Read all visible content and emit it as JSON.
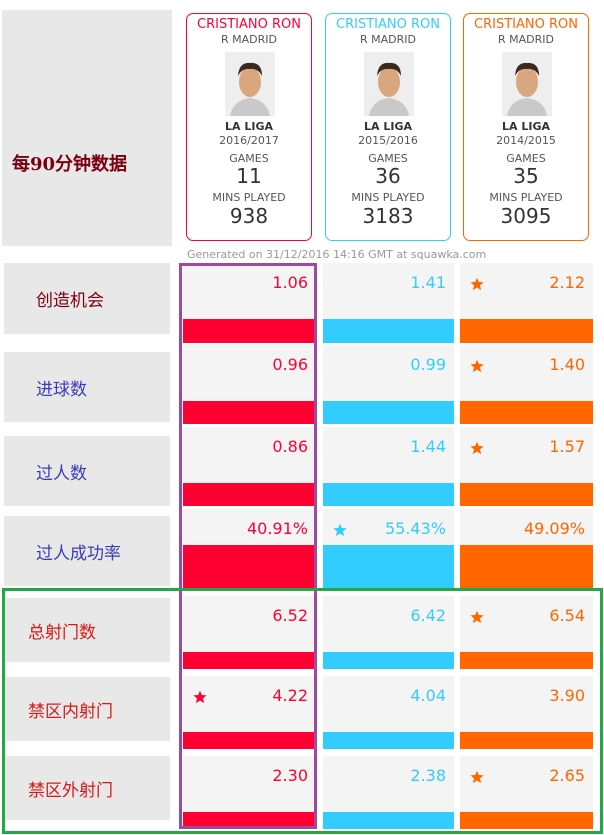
{
  "header": {
    "label": "每90分钟数据",
    "generated": "Generated on 31/12/2016 14:16 GMT at squawka.com"
  },
  "players": [
    {
      "name": "CRISTIANO RON",
      "team": "R MADRID",
      "league": "LA LIGA",
      "season": "2016/2017",
      "games_label": "GAMES",
      "games": "11",
      "mins_label": "MINS PLAYED",
      "mins": "938",
      "color": "#ff0033"
    },
    {
      "name": "CRISTIANO RON",
      "team": "R MADRID",
      "league": "LA LIGA",
      "season": "2015/2016",
      "games_label": "GAMES",
      "games": "36",
      "mins_label": "MINS PLAYED",
      "mins": "3183",
      "color": "#33ccff"
    },
    {
      "name": "CRISTIANO RON",
      "team": "R MADRID",
      "league": "LA LIGA",
      "season": "2014/2015",
      "games_label": "GAMES",
      "games": "35",
      "mins_label": "MINS PLAYED",
      "mins": "3095",
      "color": "#ff6600"
    }
  ],
  "rows": [
    {
      "label": "创造机会",
      "label_color": "#7a0010",
      "values": [
        "1.06",
        "1.41",
        "2.12"
      ],
      "star": 2
    },
    {
      "label": "进球数",
      "label_color": "#3b3bb8",
      "values": [
        "0.96",
        "0.99",
        "1.40"
      ],
      "star": 2
    },
    {
      "label": "过人数",
      "label_color": "#3b3bb8",
      "values": [
        "0.86",
        "1.44",
        "1.57"
      ],
      "star": 2
    },
    {
      "label": "过人成功率",
      "label_color": "#3b3bb8",
      "values": [
        "40.91%",
        "55.43%",
        "49.09%"
      ],
      "star": 1
    },
    {
      "label": "总射门数",
      "label_color": "#d81818",
      "values": [
        "6.52",
        "6.42",
        "6.54"
      ],
      "star": 2
    },
    {
      "label": "禁区内射门",
      "label_color": "#d81818",
      "values": [
        "4.22",
        "4.04",
        "3.90"
      ],
      "star": 0
    },
    {
      "label": "禁区外射门",
      "label_color": "#d81818",
      "values": [
        "2.30",
        "2.38",
        "2.65"
      ],
      "star": 2
    }
  ]
}
